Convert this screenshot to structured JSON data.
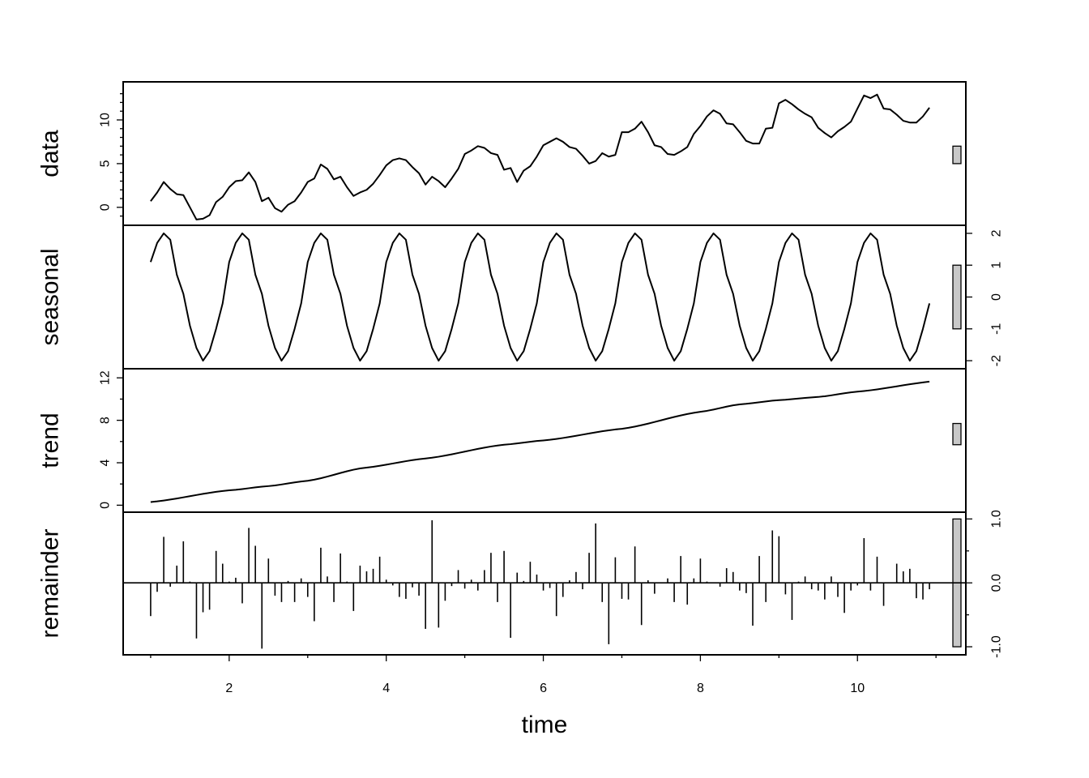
{
  "chart_data": {
    "type": "line",
    "layout": "stacked-panels",
    "xlabel": "time",
    "xlim": [
      0.65,
      11.38
    ],
    "xticks": [
      2,
      4,
      6,
      8,
      10
    ],
    "x": {
      "start": 1.0,
      "step": 0.0833333333,
      "count": 120
    },
    "panels": [
      {
        "name": "data",
        "ylabel": "data",
        "ylim": [
          -1.5,
          13.8
        ],
        "yticks": [
          0,
          5,
          10
        ],
        "tick_side": "left",
        "minor_ticks": [
          -1,
          1,
          2,
          3,
          4,
          6,
          7,
          8,
          9,
          11,
          12,
          13
        ],
        "scale_bar": [
          5.0,
          7.0
        ],
        "values": [
          0.7,
          1.7,
          2.9,
          2.1,
          1.5,
          1.4,
          0.0,
          -1.4,
          -1.3,
          -0.9,
          0.6,
          1.2,
          2.3,
          3.0,
          3.1,
          4.0,
          2.9,
          0.7,
          1.1,
          -0.1,
          -0.5,
          0.3,
          0.7,
          1.7,
          2.9,
          3.3,
          4.9,
          4.4,
          3.2,
          3.5,
          2.3,
          1.3,
          1.7,
          2.0,
          2.7,
          3.7,
          4.8,
          5.4,
          5.6,
          5.4,
          4.6,
          3.9,
          2.6,
          3.5,
          3.0,
          2.3,
          3.3,
          4.4,
          6.1,
          6.5,
          7.0,
          6.8,
          6.2,
          6.0,
          4.3,
          4.5,
          2.9,
          4.2,
          4.7,
          5.8,
          7.1,
          7.5,
          7.9,
          7.5,
          6.9,
          6.7,
          5.9,
          5.0,
          5.3,
          6.2,
          5.8,
          6.0,
          8.6,
          8.6,
          9.0,
          9.8,
          8.6,
          7.1,
          6.9,
          6.1,
          6.0,
          6.4,
          6.9,
          8.4,
          9.3,
          10.4,
          11.1,
          10.7,
          9.6,
          9.5,
          8.6,
          7.6,
          7.3,
          7.3,
          9.0,
          9.1,
          11.9,
          12.3,
          11.8,
          11.2,
          10.7,
          10.3,
          9.1,
          8.5,
          8.0,
          8.7,
          9.2,
          9.8,
          11.3,
          12.8,
          12.5,
          12.9,
          11.3,
          11.2,
          10.6,
          9.9,
          9.7,
          9.7,
          10.4,
          11.4
        ]
      },
      {
        "name": "seasonal",
        "ylabel": "seasonal",
        "ylim": [
          -2.1,
          2.1
        ],
        "yticks": [
          -2,
          -1,
          0,
          1,
          2
        ],
        "tick_side": "right",
        "minor_ticks": [],
        "scale_bar": [
          -1.0,
          1.0
        ],
        "pattern": [
          1.1,
          1.7,
          2.0,
          1.8,
          0.7,
          0.1,
          -0.9,
          -1.6,
          -2.0,
          -1.7,
          -1.0,
          -0.2
        ],
        "pattern_repeats": 10
      },
      {
        "name": "trend",
        "ylabel": "trend",
        "ylim": [
          -0.2,
          12.4
        ],
        "yticks": [
          0,
          4,
          8,
          12
        ],
        "tick_side": "left",
        "minor_ticks": [
          2,
          6,
          10
        ],
        "scale_bar": [
          5.7,
          7.7
        ],
        "knots_x": [
          1,
          2,
          2.5,
          3,
          3.7,
          4.5,
          5.5,
          6,
          7,
          8,
          8.5,
          9,
          9.5,
          10,
          11
        ],
        "knots_y": [
          0.3,
          1.4,
          1.8,
          2.3,
          3.5,
          4.4,
          5.7,
          6.1,
          7.2,
          8.8,
          9.5,
          9.9,
          10.2,
          10.7,
          11.7
        ]
      },
      {
        "name": "remainder",
        "ylabel": "remainder",
        "ylim": [
          -1.05,
          1.03
        ],
        "yticks": [
          -1.0,
          0.0,
          1.0
        ],
        "tick_format": 1,
        "tick_side": "right",
        "minor_ticks": [
          -0.5,
          0.5
        ],
        "scale_bar": [
          -1.0,
          1.0
        ],
        "baseline": 0,
        "values": [
          -0.52,
          -0.14,
          0.72,
          -0.06,
          0.27,
          0.65,
          0.02,
          -0.87,
          -0.46,
          -0.42,
          0.5,
          0.3,
          0.02,
          0.08,
          -0.32,
          0.86,
          0.58,
          -1.03,
          0.38,
          -0.2,
          -0.3,
          0.03,
          -0.3,
          0.07,
          -0.22,
          -0.6,
          0.55,
          0.1,
          -0.3,
          0.46,
          0.02,
          -0.44,
          0.27,
          0.18,
          0.22,
          0.41,
          0.05,
          -0.04,
          -0.22,
          -0.25,
          -0.07,
          -0.2,
          -0.72,
          0.98,
          -0.7,
          -0.28,
          -0.05,
          0.2,
          -0.09,
          0.05,
          -0.12,
          0.2,
          0.47,
          -0.3,
          0.5,
          -0.86,
          0.16,
          0.03,
          0.33,
          0.13,
          -0.12,
          -0.08,
          -0.52,
          -0.22,
          0.04,
          0.17,
          -0.1,
          0.47,
          0.93,
          -0.3,
          -0.96,
          0.4,
          -0.25,
          -0.26,
          0.57,
          -0.66,
          0.04,
          -0.17,
          0.0,
          0.07,
          -0.3,
          0.42,
          -0.34,
          0.07,
          0.38,
          0.02,
          0.0,
          -0.06,
          0.23,
          0.17,
          -0.12,
          -0.16,
          -0.67,
          0.42,
          -0.3,
          0.82,
          0.73,
          -0.18,
          -0.58,
          0.02,
          0.1,
          -0.1,
          -0.12,
          -0.26,
          0.1,
          -0.22,
          -0.47,
          -0.12,
          -0.04,
          0.7,
          -0.12,
          0.41,
          -0.36,
          0.0,
          0.3,
          0.18,
          0.22,
          -0.24,
          -0.26,
          -0.1
        ]
      }
    ]
  }
}
